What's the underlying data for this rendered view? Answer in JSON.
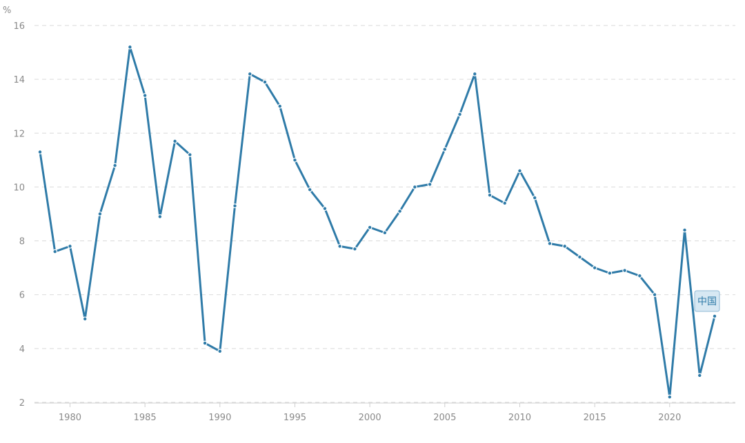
{
  "colors": {
    "series": "#2f7ba8",
    "tag_text": "#2f7ba8"
  },
  "chart_data": {
    "type": "line",
    "title": "",
    "xlabel": "",
    "ylabel": "%",
    "xlim": [
      1978,
      2023
    ],
    "ylim": [
      2,
      16
    ],
    "x_ticks": [
      1980,
      1985,
      1990,
      1995,
      2000,
      2005,
      2010,
      2015,
      2020
    ],
    "y_ticks": [
      2,
      4,
      6,
      8,
      10,
      12,
      14,
      16
    ],
    "grid": "horizontal-dashed",
    "x": [
      1978,
      1979,
      1980,
      1981,
      1982,
      1983,
      1984,
      1985,
      1986,
      1987,
      1988,
      1989,
      1990,
      1991,
      1992,
      1993,
      1994,
      1995,
      1996,
      1997,
      1998,
      1999,
      2000,
      2001,
      2002,
      2003,
      2004,
      2005,
      2006,
      2007,
      2008,
      2009,
      2010,
      2011,
      2012,
      2013,
      2014,
      2015,
      2016,
      2017,
      2018,
      2019,
      2020,
      2021,
      2022,
      2023
    ],
    "series": [
      {
        "name": "中国",
        "values": [
          11.3,
          7.6,
          7.8,
          5.1,
          9.0,
          10.8,
          15.2,
          13.4,
          8.9,
          11.7,
          11.2,
          4.2,
          3.9,
          9.3,
          14.2,
          13.9,
          13.0,
          11.0,
          9.9,
          9.2,
          7.8,
          7.7,
          8.5,
          8.3,
          9.1,
          10.0,
          10.1,
          11.4,
          12.7,
          14.2,
          9.7,
          9.4,
          10.6,
          9.6,
          7.9,
          7.8,
          7.4,
          7.0,
          6.8,
          6.9,
          6.7,
          6.0,
          2.2,
          8.4,
          3.0,
          5.2
        ]
      }
    ]
  }
}
